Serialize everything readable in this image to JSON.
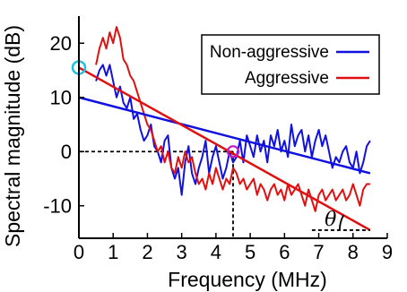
{
  "chart_data": {
    "type": "line",
    "xlabel": "Frequency (MHz)",
    "ylabel": "Spectral magnitude (dB)",
    "xlim": [
      0,
      9
    ],
    "ylim": [
      -16,
      25
    ],
    "xticks": [
      0,
      1,
      2,
      3,
      4,
      5,
      6,
      7,
      8,
      9
    ],
    "yticks": [
      -10,
      0,
      10,
      20
    ],
    "grid": false,
    "legend": "top-right",
    "series": [
      {
        "name": "Non-aggressive",
        "color": "#1010e0",
        "x": [
          0.5,
          0.6,
          0.7,
          0.8,
          0.9,
          1.0,
          1.1,
          1.2,
          1.3,
          1.4,
          1.5,
          1.6,
          1.7,
          1.8,
          1.9,
          2.0,
          2.1,
          2.2,
          2.3,
          2.4,
          2.5,
          2.6,
          2.7,
          2.8,
          2.9,
          3.0,
          3.1,
          3.2,
          3.3,
          3.4,
          3.5,
          3.6,
          3.7,
          3.8,
          3.9,
          4.0,
          4.1,
          4.2,
          4.3,
          4.4,
          4.5,
          4.6,
          4.7,
          4.8,
          4.9,
          5.0,
          5.1,
          5.2,
          5.3,
          5.4,
          5.5,
          5.6,
          5.7,
          5.8,
          5.9,
          6.0,
          6.1,
          6.2,
          6.3,
          6.4,
          6.5,
          6.6,
          6.7,
          6.8,
          6.9,
          7.0,
          7.1,
          7.2,
          7.3,
          7.4,
          7.5,
          7.6,
          7.7,
          7.8,
          7.9,
          8.0,
          8.1,
          8.2,
          8.3,
          8.4,
          8.5
        ],
        "values": [
          13,
          15,
          16,
          14,
          16,
          13,
          10,
          12,
          9,
          8,
          10,
          6,
          7,
          4,
          2,
          3,
          5,
          1,
          0,
          -2,
          2,
          3,
          -3,
          -5,
          -3,
          -8,
          -2,
          1,
          -4,
          -6,
          -3,
          -1,
          2,
          -4,
          -1,
          1,
          -2,
          -5,
          -3,
          0,
          -2,
          -1,
          2,
          -2,
          3,
          1,
          -1,
          3,
          0,
          2,
          -2,
          3,
          1,
          4,
          0,
          2,
          -1,
          5,
          1,
          3,
          4,
          0,
          3,
          -1,
          2,
          4,
          1,
          3,
          0,
          -3,
          -1,
          -2,
          0,
          1,
          -2,
          -3,
          0,
          -4,
          -2,
          1,
          2
        ]
      },
      {
        "name": "Aggressive",
        "color": "#e01010",
        "x": [
          0.5,
          0.6,
          0.7,
          0.8,
          0.9,
          1.0,
          1.1,
          1.2,
          1.3,
          1.4,
          1.5,
          1.6,
          1.7,
          1.8,
          1.9,
          2.0,
          2.1,
          2.2,
          2.3,
          2.4,
          2.5,
          2.6,
          2.7,
          2.8,
          2.9,
          3.0,
          3.1,
          3.2,
          3.3,
          3.4,
          3.5,
          3.6,
          3.7,
          3.8,
          3.9,
          4.0,
          4.1,
          4.2,
          4.3,
          4.4,
          4.5,
          4.6,
          4.7,
          4.8,
          4.9,
          5.0,
          5.1,
          5.2,
          5.3,
          5.4,
          5.5,
          5.6,
          5.7,
          5.8,
          5.9,
          6.0,
          6.1,
          6.2,
          6.3,
          6.4,
          6.5,
          6.6,
          6.7,
          6.8,
          6.9,
          7.0,
          7.1,
          7.2,
          7.3,
          7.4,
          7.5,
          7.6,
          7.7,
          7.8,
          7.9,
          8.0,
          8.1,
          8.2,
          8.3,
          8.4,
          8.5
        ],
        "values": [
          16,
          19,
          21,
          19,
          22,
          20,
          23,
          21,
          17,
          16,
          14,
          13,
          11,
          9,
          7,
          5,
          4,
          2,
          0,
          1,
          -2,
          0,
          -3,
          -4,
          -1,
          -3,
          0,
          -2,
          -1,
          -4,
          -6,
          -5,
          -7,
          -4,
          -6,
          -3,
          -5,
          -7,
          -5,
          -6,
          -3,
          -4,
          -6,
          -5,
          -7,
          -6,
          -5,
          -8,
          -6,
          -7,
          -9,
          -7,
          -6,
          -8,
          -7,
          -9,
          -6,
          -8,
          -7,
          -6,
          -8,
          -10,
          -7,
          -9,
          -11,
          -8,
          -7,
          -9,
          -8,
          -7,
          -9,
          -8,
          -7,
          -9,
          -8,
          -6,
          -8,
          -10,
          -7,
          -6,
          -6
        ]
      }
    ],
    "fit_lines": [
      {
        "series": "Non-aggressive",
        "color": "#1010e0",
        "x": [
          0,
          8.5
        ],
        "y": [
          10,
          -4
        ]
      },
      {
        "series": "Aggressive",
        "color": "#e01010",
        "x": [
          0,
          8.5
        ],
        "y": [
          15.5,
          -14.5
        ]
      }
    ],
    "annotations": {
      "intercept_marker": {
        "x": 0,
        "y": 15.5,
        "color": "#20c0e0"
      },
      "zero_crossing_marker": {
        "x": 4.5,
        "y": 0,
        "color": "#c020c0"
      },
      "zero_crossing_guides": {
        "x": 4.5,
        "y": 0
      },
      "slope_angle": {
        "symbol": "θ",
        "x": 7.8,
        "y": -12.5
      }
    }
  }
}
